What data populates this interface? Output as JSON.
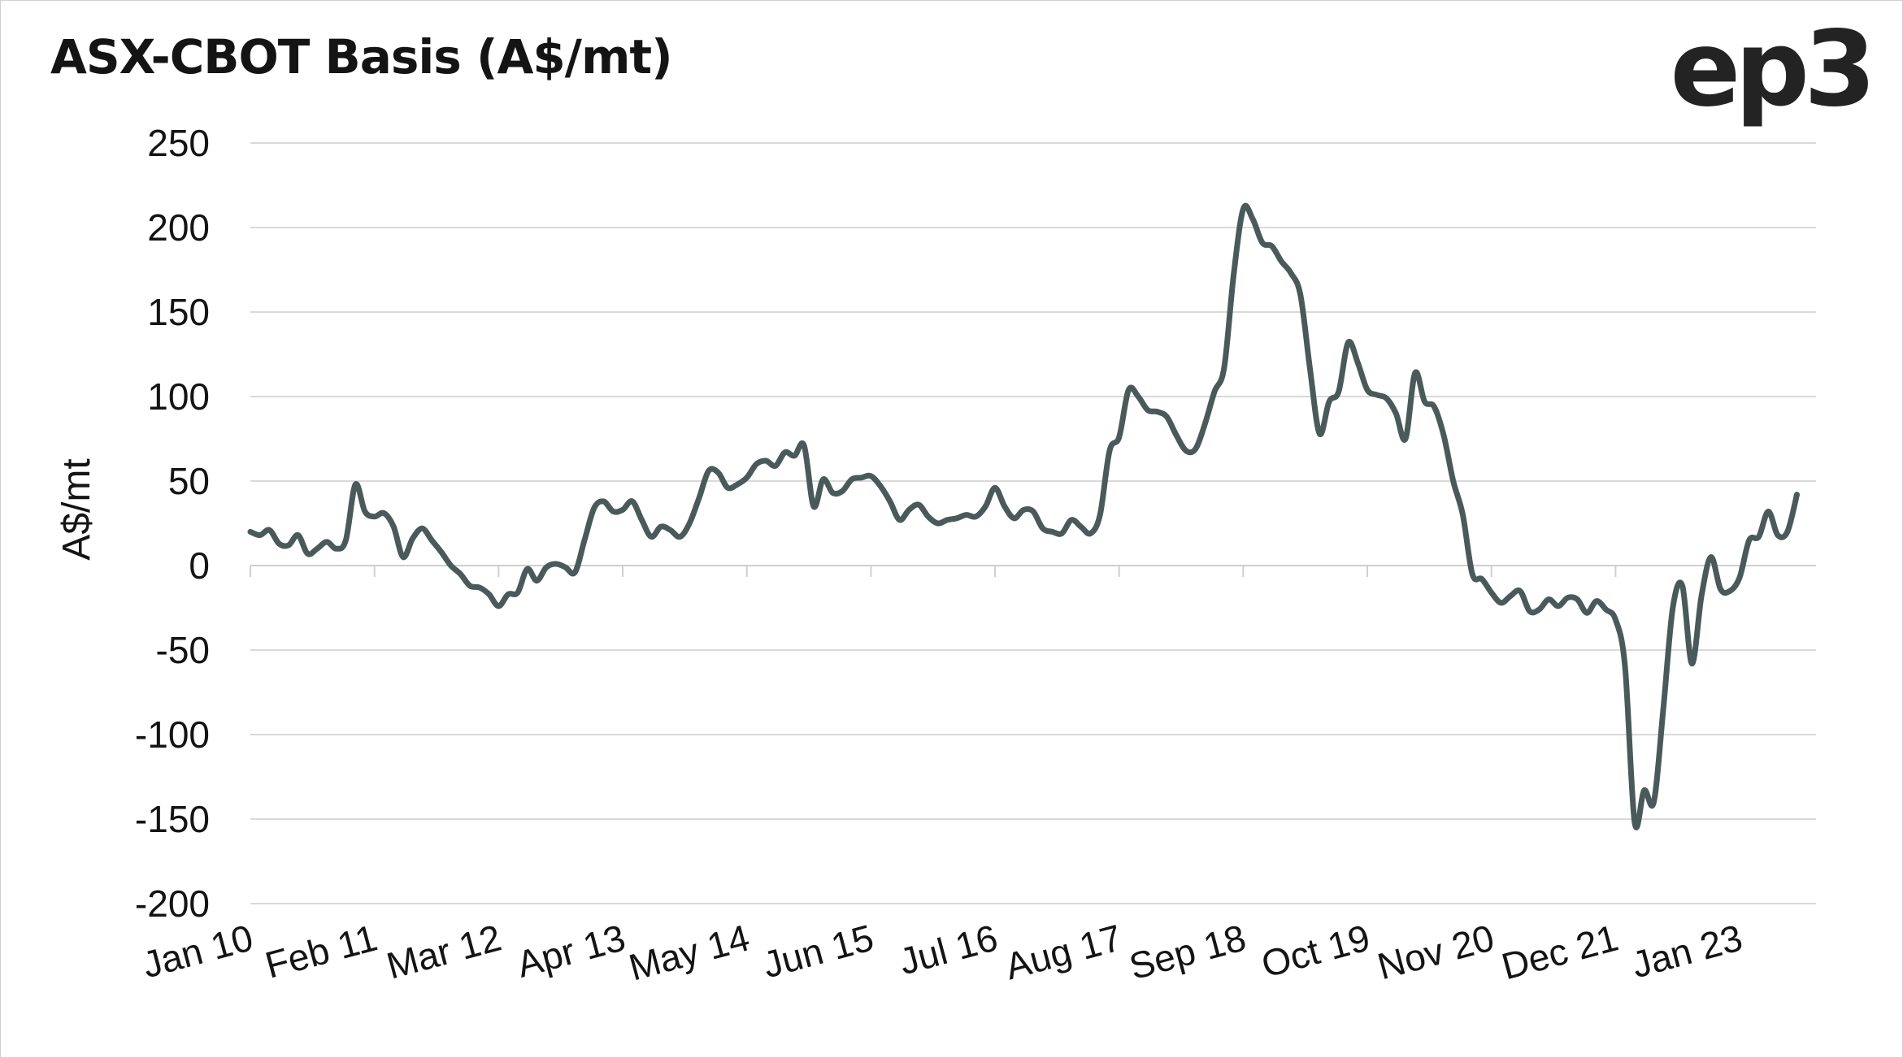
{
  "header": {
    "title": "ASX-CBOT Basis (A$/mt)",
    "logo_text": "ep3"
  },
  "chart_data": {
    "type": "line",
    "title": "ASX-CBOT Basis (A$/mt)",
    "xlabel": "",
    "ylabel": "A$/mt",
    "ylim": [
      -200,
      250
    ],
    "yticks": [
      250,
      200,
      150,
      100,
      50,
      0,
      -50,
      -100,
      -150,
      -200
    ],
    "ytick_labels": [
      "250",
      "200",
      "150",
      "100",
      "50",
      "0",
      "-50",
      "-100",
      "-150",
      "-200"
    ],
    "xlim": [
      "2010-01",
      "2023-09"
    ],
    "xtick_labels": [
      "Jan 10",
      "Feb 11",
      "Mar 12",
      "Apr 13",
      "May 14",
      "Jun 15",
      "Jul 16",
      "Aug 17",
      "Sep 18",
      "Oct 19",
      "Nov 20",
      "Dec 21",
      "Jan 23"
    ],
    "xtick_dates": [
      "2010-01",
      "2011-02",
      "2012-03",
      "2013-04",
      "2014-05",
      "2015-06",
      "2016-07",
      "2017-08",
      "2018-09",
      "2019-10",
      "2020-11",
      "2021-12",
      "2023-01"
    ],
    "grid": "horizontal",
    "line_color": "#4a5a5a",
    "grid_color": "#d9d9d9",
    "series": [
      {
        "points": [
          [
            "2010-01",
            20
          ],
          [
            "2010-02",
            18
          ],
          [
            "2010-03",
            21
          ],
          [
            "2010-04",
            13
          ],
          [
            "2010-05",
            12
          ],
          [
            "2010-06",
            18
          ],
          [
            "2010-07",
            7
          ],
          [
            "2010-08",
            10
          ],
          [
            "2010-09",
            14
          ],
          [
            "2010-10",
            10
          ],
          [
            "2010-11",
            15
          ],
          [
            "2010-12",
            48
          ],
          [
            "2011-01",
            32
          ],
          [
            "2011-02",
            29
          ],
          [
            "2011-03",
            31
          ],
          [
            "2011-04",
            23
          ],
          [
            "2011-05",
            5
          ],
          [
            "2011-06",
            16
          ],
          [
            "2011-07",
            22
          ],
          [
            "2011-08",
            15
          ],
          [
            "2011-09",
            8
          ],
          [
            "2011-10",
            0
          ],
          [
            "2011-11",
            -5
          ],
          [
            "2011-12",
            -12
          ],
          [
            "2012-01",
            -13
          ],
          [
            "2012-02",
            -17
          ],
          [
            "2012-03",
            -24
          ],
          [
            "2012-04",
            -17
          ],
          [
            "2012-05",
            -16
          ],
          [
            "2012-06",
            -2
          ],
          [
            "2012-07",
            -9
          ],
          [
            "2012-08",
            -1
          ],
          [
            "2012-09",
            1
          ],
          [
            "2012-10",
            -1
          ],
          [
            "2012-11",
            -4
          ],
          [
            "2012-12",
            15
          ],
          [
            "2013-01",
            34
          ],
          [
            "2013-02",
            38
          ],
          [
            "2013-03",
            32
          ],
          [
            "2013-04",
            33
          ],
          [
            "2013-05",
            38
          ],
          [
            "2013-06",
            27
          ],
          [
            "2013-07",
            17
          ],
          [
            "2013-08",
            23
          ],
          [
            "2013-09",
            21
          ],
          [
            "2013-10",
            17
          ],
          [
            "2013-11",
            25
          ],
          [
            "2013-12",
            40
          ],
          [
            "2014-01",
            56
          ],
          [
            "2014-02",
            55
          ],
          [
            "2014-03",
            46
          ],
          [
            "2014-04",
            48
          ],
          [
            "2014-05",
            52
          ],
          [
            "2014-06",
            60
          ],
          [
            "2014-07",
            62
          ],
          [
            "2014-08",
            59
          ],
          [
            "2014-09",
            67
          ],
          [
            "2014-10",
            65
          ],
          [
            "2014-11",
            71
          ],
          [
            "2014-12",
            35
          ],
          [
            "2015-01",
            51
          ],
          [
            "2015-02",
            43
          ],
          [
            "2015-03",
            44
          ],
          [
            "2015-04",
            51
          ],
          [
            "2015-05",
            52
          ],
          [
            "2015-06",
            53
          ],
          [
            "2015-07",
            47
          ],
          [
            "2015-08",
            38
          ],
          [
            "2015-09",
            27
          ],
          [
            "2015-10",
            33
          ],
          [
            "2015-11",
            36
          ],
          [
            "2015-12",
            29
          ],
          [
            "2016-01",
            25
          ],
          [
            "2016-02",
            27
          ],
          [
            "2016-03",
            28
          ],
          [
            "2016-04",
            30
          ],
          [
            "2016-05",
            29
          ],
          [
            "2016-06",
            35
          ],
          [
            "2016-07",
            46
          ],
          [
            "2016-08",
            35
          ],
          [
            "2016-09",
            28
          ],
          [
            "2016-10",
            33
          ],
          [
            "2016-11",
            32
          ],
          [
            "2016-12",
            22
          ],
          [
            "2017-01",
            20
          ],
          [
            "2017-02",
            19
          ],
          [
            "2017-03",
            27
          ],
          [
            "2017-04",
            23
          ],
          [
            "2017-05",
            19
          ],
          [
            "2017-06",
            30
          ],
          [
            "2017-07",
            68
          ],
          [
            "2017-08",
            76
          ],
          [
            "2017-09",
            104
          ],
          [
            "2017-10",
            100
          ],
          [
            "2017-11",
            92
          ],
          [
            "2017-12",
            91
          ],
          [
            "2018-01",
            88
          ],
          [
            "2018-02",
            77
          ],
          [
            "2018-03",
            68
          ],
          [
            "2018-04",
            69
          ],
          [
            "2018-05",
            84
          ],
          [
            "2018-06",
            103
          ],
          [
            "2018-07",
            117
          ],
          [
            "2018-08",
            172
          ],
          [
            "2018-09",
            211
          ],
          [
            "2018-10",
            205
          ],
          [
            "2018-11",
            191
          ],
          [
            "2018-12",
            189
          ],
          [
            "2019-01",
            180
          ],
          [
            "2019-02",
            173
          ],
          [
            "2019-03",
            160
          ],
          [
            "2019-04",
            116
          ],
          [
            "2019-05",
            78
          ],
          [
            "2019-06",
            97
          ],
          [
            "2019-07",
            103
          ],
          [
            "2019-08",
            132
          ],
          [
            "2019-09",
            120
          ],
          [
            "2019-10",
            104
          ],
          [
            "2019-11",
            101
          ],
          [
            "2019-12",
            99
          ],
          [
            "2020-01",
            90
          ],
          [
            "2020-02",
            75
          ],
          [
            "2020-03",
            114
          ],
          [
            "2020-04",
            97
          ],
          [
            "2020-05",
            94
          ],
          [
            "2020-06",
            77
          ],
          [
            "2020-07",
            50
          ],
          [
            "2020-08",
            30
          ],
          [
            "2020-09",
            -5
          ],
          [
            "2020-10",
            -8
          ],
          [
            "2020-11",
            -16
          ],
          [
            "2020-12",
            -22
          ],
          [
            "2021-01",
            -18
          ],
          [
            "2021-02",
            -15
          ],
          [
            "2021-03",
            -27
          ],
          [
            "2021-04",
            -26
          ],
          [
            "2021-05",
            -20
          ],
          [
            "2021-06",
            -24
          ],
          [
            "2021-07",
            -19
          ],
          [
            "2021-08",
            -20
          ],
          [
            "2021-09",
            -28
          ],
          [
            "2021-10",
            -21
          ],
          [
            "2021-11",
            -26
          ],
          [
            "2021-12",
            -32
          ],
          [
            "2022-01",
            -60
          ],
          [
            "2022-02",
            -152
          ],
          [
            "2022-03",
            -133
          ],
          [
            "2022-04",
            -140
          ],
          [
            "2022-05",
            -85
          ],
          [
            "2022-06",
            -25
          ],
          [
            "2022-07",
            -12
          ],
          [
            "2022-08",
            -58
          ],
          [
            "2022-09",
            -18
          ],
          [
            "2022-10",
            5
          ],
          [
            "2022-11",
            -14
          ],
          [
            "2022-12",
            -15
          ],
          [
            "2023-01",
            -7
          ],
          [
            "2023-02",
            15
          ],
          [
            "2023-03",
            17
          ],
          [
            "2023-04",
            32
          ],
          [
            "2023-05",
            18
          ],
          [
            "2023-06",
            20
          ],
          [
            "2023-07",
            42
          ]
        ]
      }
    ]
  }
}
